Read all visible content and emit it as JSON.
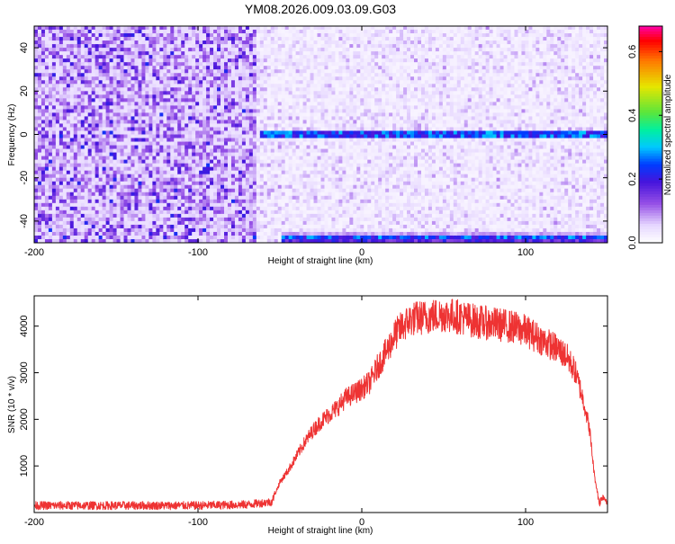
{
  "title": "YM08.2026.009.03.09.G03",
  "chart_data": [
    {
      "type": "heatmap",
      "xlabel": "Height of straight line (km)",
      "ylabel": "Frequency (Hz)",
      "xlim": [
        -200,
        150
      ],
      "ylim": [
        -50,
        50
      ],
      "x_ticks": [
        -200,
        -100,
        0,
        100
      ],
      "y_ticks": [
        -40,
        -20,
        0,
        20,
        40
      ],
      "colorbar": {
        "label": "Normalized spectral amplitude",
        "range": [
          0,
          0.68
        ],
        "ticks": [
          0.0,
          0.2,
          0.4,
          0.6
        ]
      },
      "features": [
        {
          "kind": "noise",
          "x_range": [
            -200,
            -65
          ],
          "level": 0.12
        },
        {
          "kind": "noise",
          "x_range": [
            -65,
            150
          ],
          "level": 0.05
        },
        {
          "kind": "tone",
          "x_range": [
            -62,
            150
          ],
          "frequency": 0,
          "amplitude": 0.35
        },
        {
          "kind": "tone",
          "x_range": [
            -50,
            150
          ],
          "frequency": -48,
          "amplitude": 0.3
        }
      ]
    },
    {
      "type": "line",
      "xlabel": "Height of straight line (km)",
      "ylabel": "SNR (10 * v/v)",
      "xlim": [
        -200,
        150
      ],
      "ylim": [
        0,
        4650
      ],
      "x_ticks": [
        -200,
        -100,
        0,
        100
      ],
      "y_ticks": [
        1000,
        2000,
        3000,
        4000
      ],
      "color": "#ee3333",
      "series": [
        {
          "x": [
            -200,
            -150,
            -100,
            -70,
            -55,
            -50,
            -45,
            -40,
            -35,
            -30,
            -25,
            -20,
            -15,
            -10,
            -5,
            0,
            5,
            10,
            15,
            20,
            25,
            30,
            40,
            50,
            60,
            70,
            80,
            90,
            100,
            110,
            115,
            120,
            125,
            130,
            133,
            136,
            139,
            142,
            145,
            147,
            150
          ],
          "values": [
            150,
            150,
            150,
            170,
            230,
            650,
            900,
            1200,
            1500,
            1750,
            1950,
            2100,
            2250,
            2450,
            2550,
            2650,
            2800,
            3150,
            3450,
            3800,
            4000,
            4150,
            4200,
            4250,
            4200,
            4100,
            4050,
            4000,
            3900,
            3700,
            3600,
            3500,
            3350,
            3050,
            2700,
            2300,
            1800,
            800,
            200,
            350,
            250
          ]
        }
      ]
    }
  ]
}
